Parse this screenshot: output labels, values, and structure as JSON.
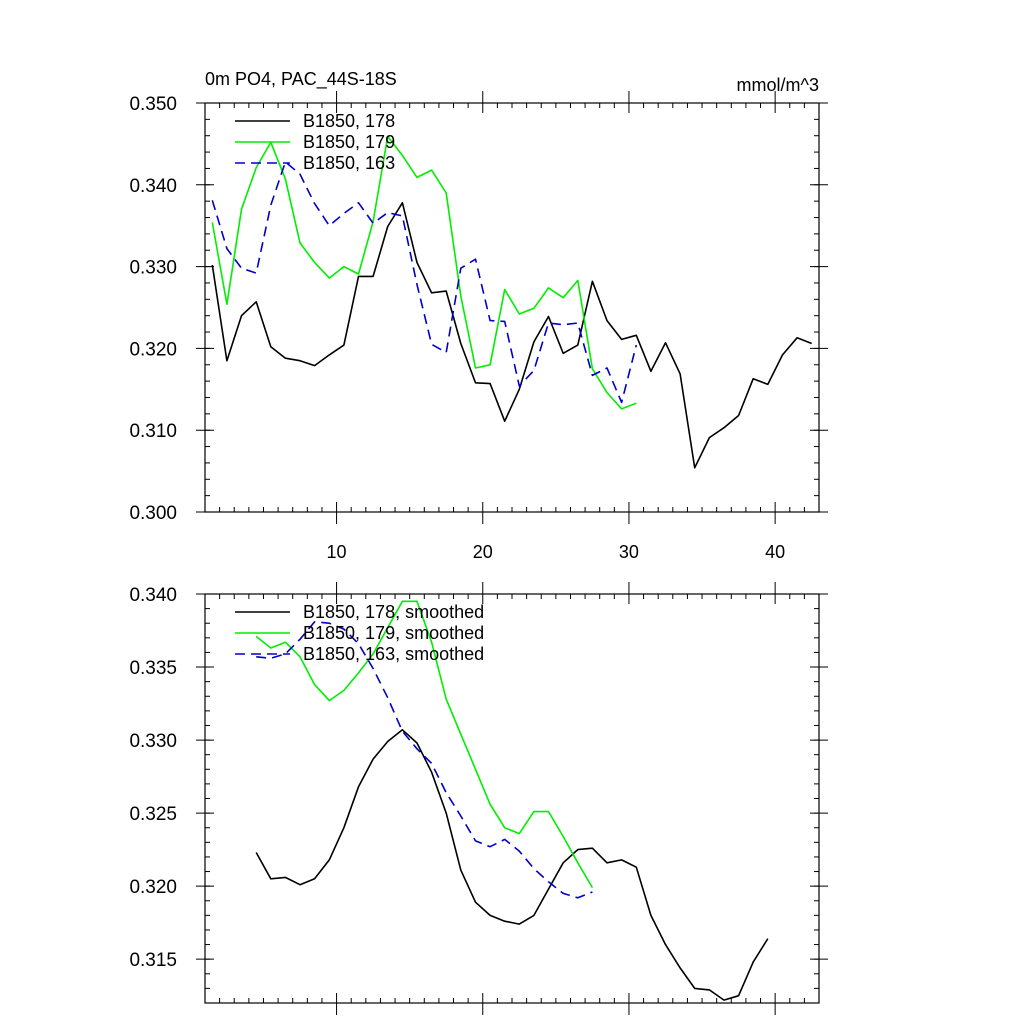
{
  "chart_data": [
    {
      "type": "line",
      "title_left": "0m PO4, PAC_44S-18S",
      "title_right": "mmol/m^3",
      "xlim": [
        1,
        43
      ],
      "ylim": [
        0.3,
        0.35
      ],
      "x_ticks": [
        10,
        20,
        30,
        40
      ],
      "x_tick_labels": [
        "10",
        "20",
        "30",
        "40"
      ],
      "y_ticks": [
        0.3,
        0.31,
        0.32,
        0.33,
        0.34,
        0.35
      ],
      "y_tick_labels": [
        "0.300",
        "0.310",
        "0.320",
        "0.330",
        "0.340",
        "0.350"
      ],
      "legend_position": "top-left",
      "series": [
        {
          "name": "B1850, 178",
          "color": "#000000",
          "dash": "solid",
          "x": [
            1.5,
            2.5,
            3.5,
            4.5,
            5.5,
            6.5,
            7.5,
            8.5,
            9.5,
            10.5,
            11.5,
            12.5,
            13.5,
            14.5,
            15.5,
            16.5,
            17.5,
            18.5,
            19.5,
            20.5,
            21.5,
            22.5,
            23.5,
            24.5,
            25.5,
            26.5,
            27.5,
            28.5,
            29.5,
            30.5,
            31.5,
            32.5,
            33.5,
            34.5,
            35.5,
            36.5,
            37.5,
            38.5,
            39.5,
            40.5,
            41.5,
            42.5
          ],
          "y": [
            0.3302,
            0.3185,
            0.324,
            0.3257,
            0.3202,
            0.3188,
            0.3185,
            0.3179,
            0.3192,
            0.3204,
            0.3288,
            0.3288,
            0.3349,
            0.3378,
            0.3305,
            0.3268,
            0.327,
            0.3206,
            0.3158,
            0.3157,
            0.3111,
            0.315,
            0.3208,
            0.3239,
            0.3194,
            0.3204,
            0.3282,
            0.3234,
            0.3211,
            0.3216,
            0.3172,
            0.3207,
            0.3169,
            0.3054,
            0.3091,
            0.3103,
            0.3118,
            0.3163,
            0.3156,
            0.3192,
            0.3213,
            0.3206
          ]
        },
        {
          "name": "B1850, 179",
          "color": "#00ee00",
          "dash": "solid",
          "x": [
            1.5,
            2.5,
            3.5,
            4.5,
            5.5,
            6.5,
            7.5,
            8.5,
            9.5,
            10.5,
            11.5,
            12.5,
            13.5,
            14.5,
            15.5,
            16.5,
            17.5,
            18.5,
            19.5,
            20.5,
            21.5,
            22.5,
            23.5,
            24.5,
            25.5,
            26.5,
            27.5,
            28.5,
            29.5,
            30.5
          ],
          "y": [
            0.3354,
            0.3254,
            0.337,
            0.3421,
            0.3452,
            0.3407,
            0.3329,
            0.3305,
            0.3286,
            0.33,
            0.3291,
            0.3355,
            0.3459,
            0.3436,
            0.3409,
            0.3418,
            0.339,
            0.3264,
            0.3176,
            0.318,
            0.3272,
            0.3242,
            0.3249,
            0.3274,
            0.3262,
            0.3283,
            0.3175,
            0.3146,
            0.3126,
            0.3133
          ]
        },
        {
          "name": "B1850, 163",
          "color": "#0000cc",
          "dash": "dashed",
          "x": [
            1.5,
            2.5,
            3.5,
            4.5,
            5.5,
            6.5,
            7.5,
            8.5,
            9.5,
            10.5,
            11.5,
            12.5,
            13.5,
            14.5,
            15.5,
            16.5,
            17.5,
            18.5,
            19.5,
            20.5,
            21.5,
            22.5,
            23.5,
            24.5,
            25.5,
            26.5,
            27.5,
            28.5,
            29.5,
            30.5
          ],
          "y": [
            0.3381,
            0.3322,
            0.3298,
            0.3292,
            0.3375,
            0.3428,
            0.3413,
            0.3377,
            0.335,
            0.3365,
            0.3378,
            0.3353,
            0.3366,
            0.3362,
            0.3278,
            0.3205,
            0.3195,
            0.3298,
            0.3309,
            0.3234,
            0.3233,
            0.3154,
            0.3173,
            0.3231,
            0.3229,
            0.3231,
            0.3167,
            0.3176,
            0.3134,
            0.3204
          ]
        }
      ]
    },
    {
      "type": "line",
      "xlim": [
        1,
        43
      ],
      "ylim": [
        0.312,
        0.34
      ],
      "x_ticks": [
        10,
        20,
        30,
        40
      ],
      "x_tick_labels": [
        "",
        "",
        "",
        ""
      ],
      "y_ticks": [
        0.315,
        0.32,
        0.325,
        0.33,
        0.335,
        0.34
      ],
      "y_tick_labels": [
        "0.315",
        "0.320",
        "0.325",
        "0.330",
        "0.335",
        "0.340"
      ],
      "legend_position": "top-left",
      "series": [
        {
          "name": "B1850, 178, smoothed",
          "color": "#000000",
          "dash": "solid",
          "x": [
            4.5,
            5.5,
            6.5,
            7.5,
            8.5,
            9.5,
            10.5,
            11.5,
            12.5,
            13.5,
            14.5,
            15.5,
            16.5,
            17.5,
            18.5,
            19.5,
            20.5,
            21.5,
            22.5,
            23.5,
            24.5,
            25.5,
            26.5,
            27.5,
            28.5,
            29.5,
            30.5,
            31.5,
            32.5,
            33.5,
            34.5,
            35.5,
            36.5,
            37.5,
            38.5,
            39.5
          ],
          "y": [
            0.3223,
            0.3205,
            0.3206,
            0.3201,
            0.3205,
            0.3218,
            0.324,
            0.3268,
            0.3287,
            0.3299,
            0.3307,
            0.3298,
            0.3278,
            0.325,
            0.3211,
            0.3189,
            0.318,
            0.3176,
            0.3174,
            0.318,
            0.3198,
            0.3216,
            0.3225,
            0.3226,
            0.3216,
            0.3218,
            0.3213,
            0.318,
            0.316,
            0.3144,
            0.313,
            0.3129,
            0.3122,
            0.3125,
            0.3148,
            0.3164
          ]
        },
        {
          "name": "B1850, 179, smoothed",
          "color": "#00ee00",
          "dash": "solid",
          "x": [
            4.5,
            5.5,
            6.5,
            7.5,
            8.5,
            9.5,
            10.5,
            11.5,
            12.5,
            13.5,
            14.5,
            15.5,
            16.5,
            17.5,
            18.5,
            19.5,
            20.5,
            21.5,
            22.5,
            23.5,
            24.5,
            25.5,
            26.5,
            27.5
          ],
          "y": [
            0.3371,
            0.3363,
            0.3367,
            0.3357,
            0.3338,
            0.3327,
            0.3334,
            0.3346,
            0.3359,
            0.3377,
            0.3395,
            0.3395,
            0.3367,
            0.3328,
            0.3304,
            0.328,
            0.3256,
            0.324,
            0.3236,
            0.3251,
            0.3251,
            0.3234,
            0.3216,
            0.3199
          ]
        },
        {
          "name": "B1850, 163, smoothed",
          "color": "#0000cc",
          "dash": "dashed",
          "x": [
            4.5,
            5.5,
            6.5,
            7.5,
            8.5,
            9.5,
            10.5,
            11.5,
            12.5,
            13.5,
            14.5,
            15.5,
            16.5,
            17.5,
            18.5,
            19.5,
            20.5,
            21.5,
            22.5,
            23.5,
            24.5,
            25.5,
            26.5,
            27.5
          ],
          "y": [
            0.3357,
            0.3356,
            0.3359,
            0.3369,
            0.3381,
            0.338,
            0.3376,
            0.3366,
            0.3349,
            0.3329,
            0.3306,
            0.3294,
            0.3284,
            0.3264,
            0.3248,
            0.3231,
            0.3227,
            0.3232,
            0.3224,
            0.3212,
            0.3203,
            0.3195,
            0.3192,
            0.3196
          ]
        }
      ]
    }
  ]
}
